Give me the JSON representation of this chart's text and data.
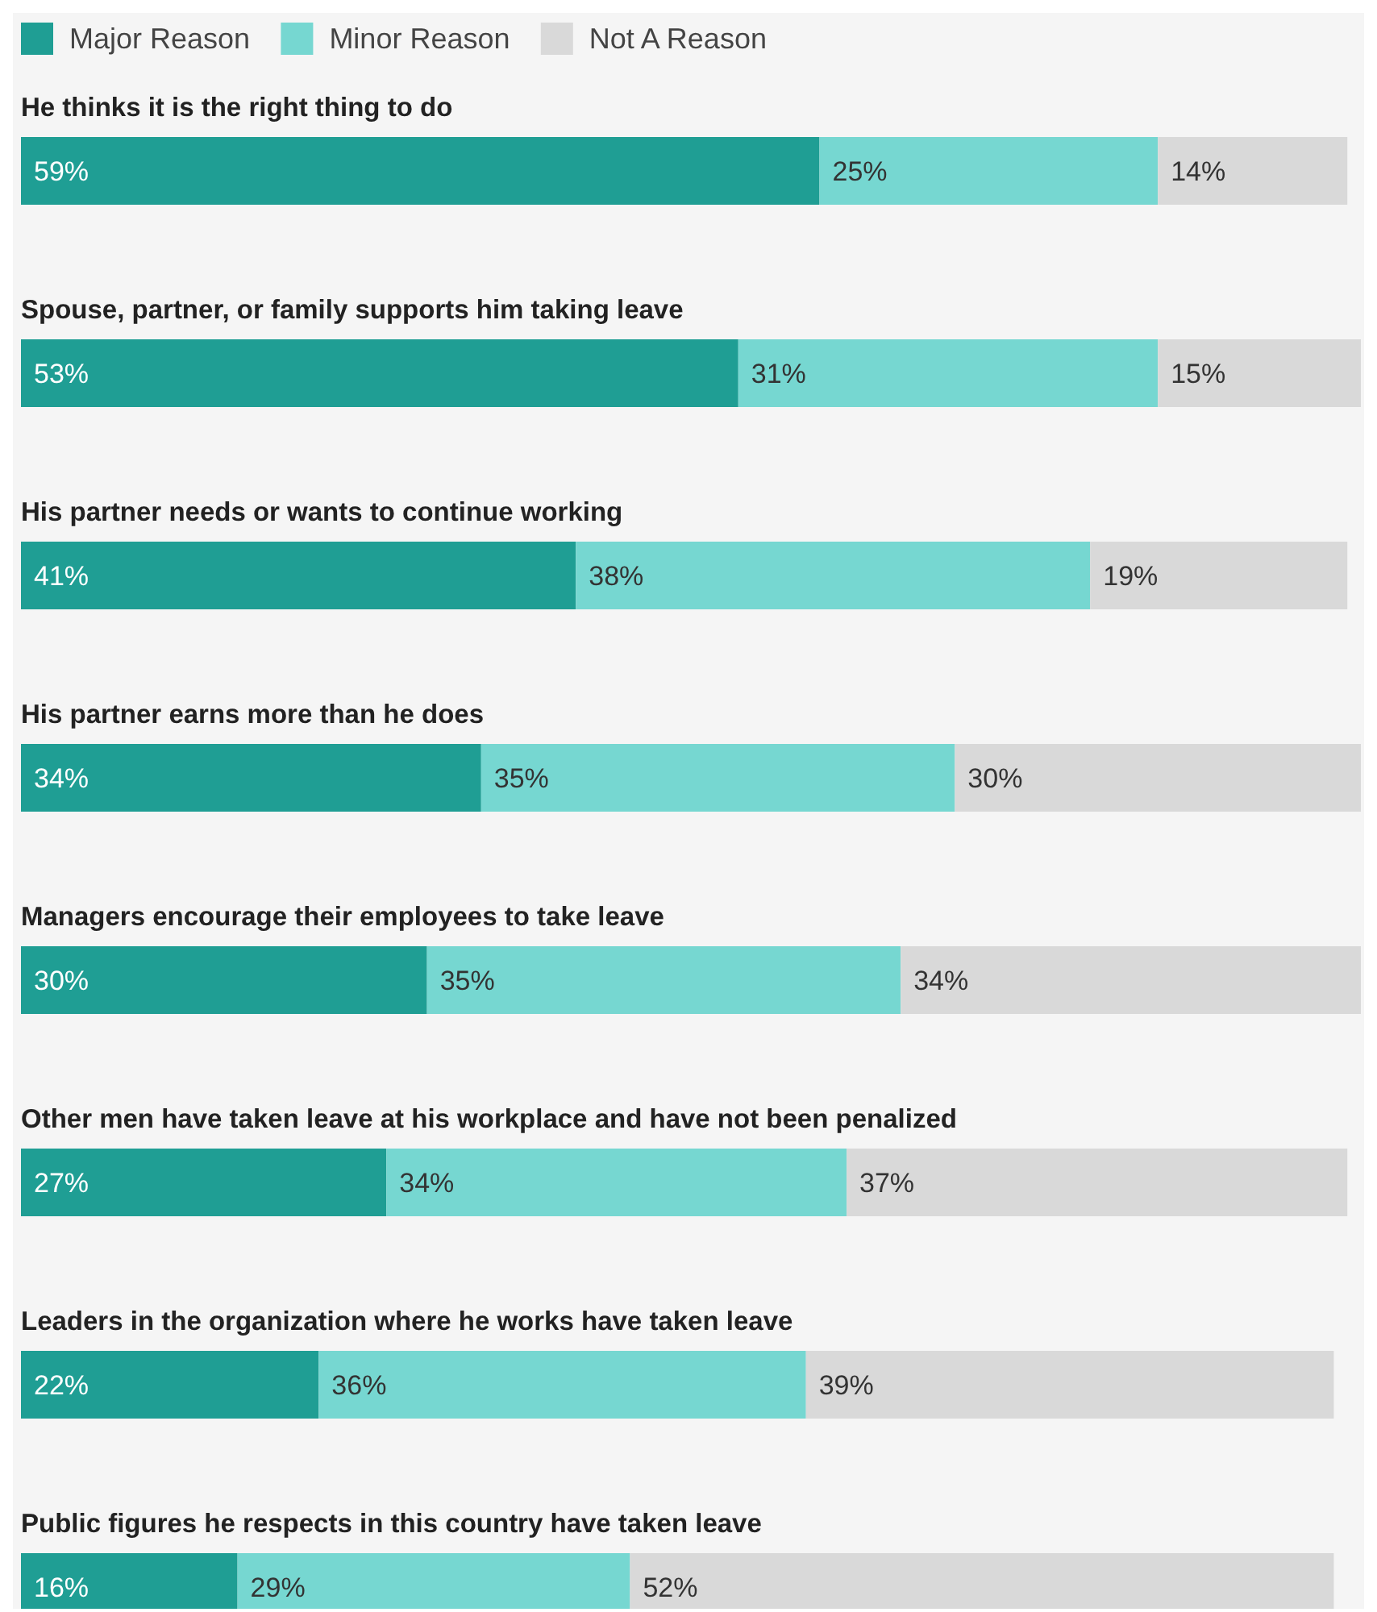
{
  "chart_data": {
    "type": "bar",
    "orientation": "horizontal",
    "stacked": true,
    "legend": "top left",
    "categories": [
      "He thinks it is the right thing to do",
      "Spouse, partner, or family supports him taking leave",
      "His partner needs or wants to continue working",
      "His partner earns more than he does",
      "Managers encourage their employees to take leave",
      "Other men have taken leave at his workplace and have not been penalized",
      "Leaders in the organization where he works have taken leave",
      "Public figures he respects in this country have taken leave"
    ],
    "series": [
      {
        "name": "Major Reason",
        "color": "#1f9e94",
        "values": [
          59,
          53,
          41,
          34,
          30,
          27,
          22,
          16
        ],
        "value_labels": [
          "59%",
          "53%",
          "41%",
          "34%",
          "30%",
          "27%",
          "22%",
          "16%"
        ]
      },
      {
        "name": "Minor Reason",
        "color": "#76d7d1",
        "values": [
          25,
          31,
          38,
          35,
          35,
          34,
          36,
          29
        ],
        "value_labels": [
          "25%",
          "31%",
          "38%",
          "35%",
          "35%",
          "34%",
          "36%",
          "29%"
        ]
      },
      {
        "name": "Not A Reason",
        "color": "#d9d9d9",
        "values": [
          14,
          15,
          19,
          30,
          34,
          37,
          39,
          52
        ],
        "value_labels": [
          "14%",
          "15%",
          "19%",
          "30%",
          "34%",
          "37%",
          "39%",
          "52%"
        ]
      }
    ]
  }
}
